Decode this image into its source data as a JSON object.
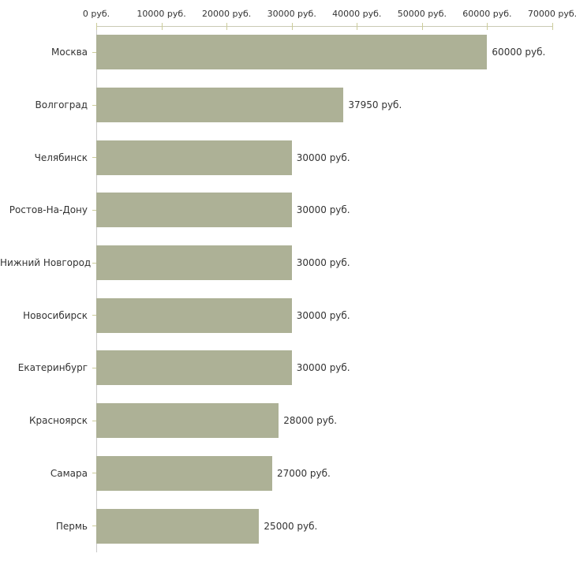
{
  "chart_data": {
    "type": "bar",
    "orientation": "horizontal",
    "title": "",
    "xlabel": "",
    "ylabel": "",
    "categories": [
      "Москва",
      "Волгоград",
      "Челябинск",
      "Ростов-На-Дону",
      "Нижний Новгород",
      "Новосибирск",
      "Екатеринбург",
      "Красноярск",
      "Самара",
      "Пермь"
    ],
    "values": [
      60000,
      37950,
      30000,
      30000,
      30000,
      30000,
      30000,
      28000,
      27000,
      25000
    ],
    "value_labels": [
      "60000 руб.",
      "37950 руб.",
      "30000 руб.",
      "30000 руб.",
      "30000 руб.",
      "30000 руб.",
      "30000 руб.",
      "28000 руб.",
      "27000 руб.",
      "25000 руб."
    ],
    "x_ticks": [
      0,
      10000,
      20000,
      30000,
      40000,
      50000,
      60000,
      70000
    ],
    "x_tick_labels": [
      "0 руб.",
      "10000 руб.",
      "20000 руб.",
      "30000 руб.",
      "40000 руб.",
      "50000 руб.",
      "60000 руб.",
      "70000 руб."
    ],
    "xlim": [
      0,
      70000
    ],
    "grid": false,
    "legend": false,
    "axis_position": "top",
    "colors": {
      "bar": "#adb196",
      "x_axis_line": "#c9c9b4",
      "y_axis_line": "#c9c9c9",
      "tick": "#cccc99",
      "text": "#333333",
      "background": "#ffffff"
    }
  }
}
